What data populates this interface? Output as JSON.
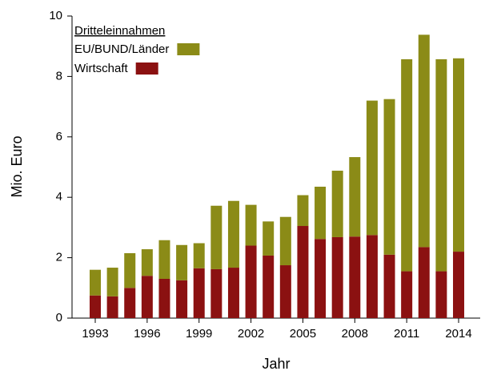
{
  "chart_data": {
    "type": "stacked_bar",
    "x_label": "Jahr",
    "y_label": "Mio. Euro",
    "legend_title": "Dritteleinnahmen",
    "categories": [
      "1993",
      null,
      null,
      "1996",
      null,
      null,
      "1999",
      null,
      null,
      "2002",
      null,
      null,
      "2005",
      null,
      null,
      "2008",
      null,
      null,
      "2011",
      null,
      null,
      "2014"
    ],
    "series": [
      {
        "name": "Wirtschaft",
        "color": "#8b1111",
        "values": [
          0.75,
          0.72,
          1.0,
          1.4,
          1.3,
          1.25,
          1.65,
          1.62,
          1.67,
          2.4,
          2.07,
          1.75,
          3.05,
          2.62,
          2.68,
          2.7,
          2.75,
          2.1,
          1.55,
          2.35,
          1.55,
          2.2
        ]
      },
      {
        "name": "EU/BUND/Länder",
        "color": "#8b8b17",
        "values": [
          0.85,
          0.95,
          1.15,
          0.88,
          1.28,
          1.17,
          0.83,
          2.1,
          2.21,
          1.35,
          1.13,
          1.6,
          1.02,
          1.73,
          2.2,
          2.63,
          4.45,
          5.15,
          7.02,
          7.03,
          7.02,
          6.4
        ]
      }
    ],
    "ylim": [
      0,
      10
    ],
    "yticks": [
      0,
      2,
      4,
      6,
      8,
      10
    ],
    "legend": "upper left"
  }
}
